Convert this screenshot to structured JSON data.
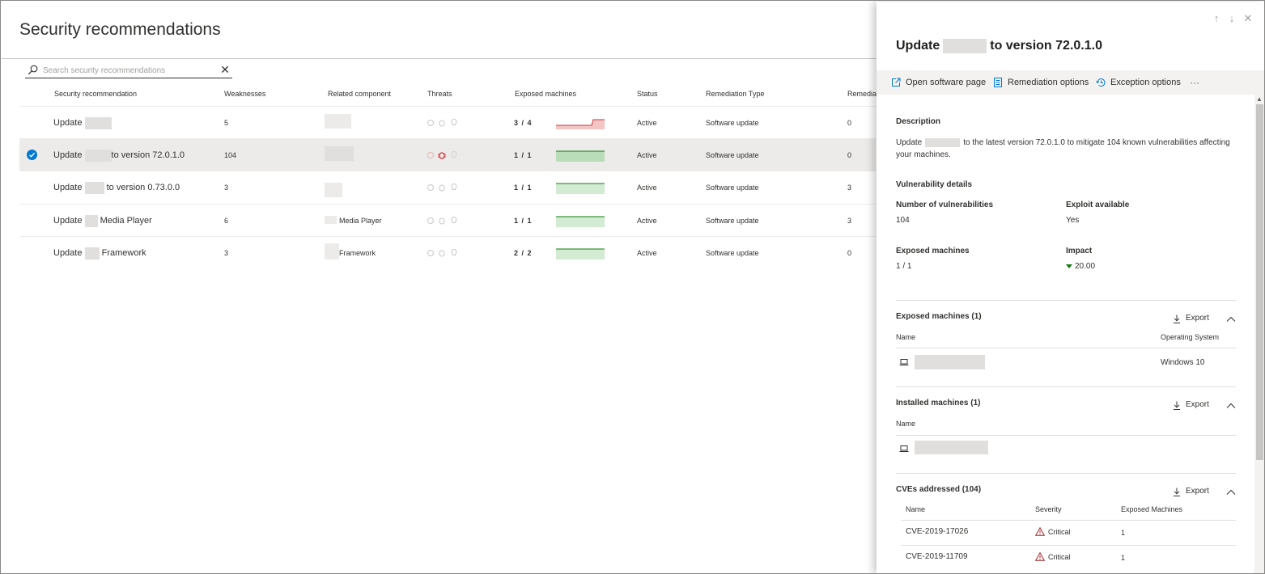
{
  "page": {
    "title": "Security recommendations"
  },
  "search": {
    "placeholder": "Search security recommendations"
  },
  "columns": {
    "recommendation": "Security recommendation",
    "weaknesses": "Weaknesses",
    "component": "Related component",
    "threats": "Threats",
    "exposed": "Exposed machines",
    "status": "Status",
    "remediation_type": "Remediation Type",
    "remediation": "Remediati"
  },
  "rows": [
    {
      "name_pre": "Update",
      "name_post": "",
      "weaknesses": "5",
      "component": "",
      "exposed": "3 / 4",
      "status": "Active",
      "remediation_type": "Software update",
      "remediation": "0",
      "spark_color": "#d13438",
      "selected": false
    },
    {
      "name_pre": "Update",
      "name_post": "to version 72.0.1.0",
      "weaknesses": "104",
      "component": "",
      "exposed": "1 / 1",
      "status": "Active",
      "remediation_type": "Software update",
      "remediation": "0",
      "spark_color": "#107c10",
      "selected": true
    },
    {
      "name_pre": "Update",
      "name_post": "to version 0.73.0.0",
      "weaknesses": "3",
      "component": "",
      "exposed": "1 / 1",
      "status": "Active",
      "remediation_type": "Software update",
      "remediation": "3",
      "spark_color": "#107c10",
      "selected": false
    },
    {
      "name_pre": "Update",
      "name_post": "Media Player",
      "weaknesses": "6",
      "component": "Media Player",
      "exposed": "1 / 1",
      "status": "Active",
      "remediation_type": "Software update",
      "remediation": "3",
      "spark_color": "#107c10",
      "selected": false
    },
    {
      "name_pre": "Update",
      "name_post": "Framework",
      "weaknesses": "3",
      "component": "Framework",
      "exposed": "2 / 2",
      "status": "Active",
      "remediation_type": "Software update",
      "remediation": "0",
      "spark_color": "#107c10",
      "selected": false
    }
  ],
  "panel": {
    "title_pre": "Update",
    "title_post": "to version 72.0.1.0",
    "commands": {
      "open_software": "Open software page",
      "remediation_options": "Remediation options",
      "exception_options": "Exception options",
      "more": "···"
    },
    "description_label": "Description",
    "description_pre": "Update",
    "description_post": "to the latest version 72.0.1.0 to mitigate 104 known vulnerabilities affecting your machines.",
    "vuln_details_label": "Vulnerability details",
    "num_vuln_label": "Number of vulnerabilities",
    "num_vuln_value": "104",
    "exploit_label": "Exploit available",
    "exploit_value": "Yes",
    "exposed_label": "Exposed machines",
    "exposed_value": "1 / 1",
    "impact_label": "Impact",
    "impact_value": "20.00",
    "exposed_section": {
      "title": "Exposed machines (1)",
      "export": "Export",
      "col_name": "Name",
      "col_os": "Operating System",
      "os_value": "Windows 10"
    },
    "installed_section": {
      "title": "Installed machines (1)",
      "export": "Export",
      "col_name": "Name"
    },
    "cves_section": {
      "title": "CVEs addressed (104)",
      "export": "Export",
      "col_name": "Name",
      "col_severity": "Severity",
      "col_exposed": "Exposed Machines",
      "items": [
        {
          "name": "CVE-2019-17026",
          "severity": "Critical",
          "exposed": "1"
        },
        {
          "name": "CVE-2019-11709",
          "severity": "Critical",
          "exposed": "1"
        }
      ]
    }
  }
}
